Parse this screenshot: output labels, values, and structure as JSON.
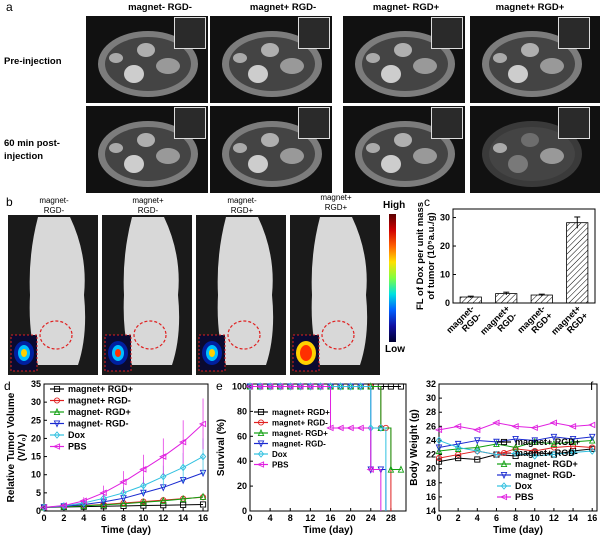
{
  "panel_a": {
    "label": "a",
    "columns": [
      "magnet- RGD-",
      "magnet+ RGD-",
      "magnet- RGD+",
      "magnet+ RGD+"
    ],
    "rows": [
      "Pre-injection",
      "60 min post-\ninjection"
    ]
  },
  "panel_b": {
    "label": "b",
    "mice": [
      "magnet-\nRGD-",
      "magnet+\nRGD-",
      "magnet-\nRGD+",
      "magnet+\nRGD+"
    ],
    "scale_high": "High",
    "scale_low": "Low",
    "colors": {
      "hot": "#ff3000",
      "warm": "#ffd000",
      "cool": "#00c0ff",
      "cold": "#0020a0"
    }
  },
  "chart_data": [
    {
      "panel": "c",
      "type": "bar",
      "categories": [
        "magnet-\nRGD-",
        "magnet+\nRGD-",
        "magnet-\nRGD+",
        "magnet+\nRGD+"
      ],
      "values": [
        2.1,
        3.3,
        2.8,
        28.2
      ],
      "errors": [
        0.3,
        0.5,
        0.3,
        2.0
      ],
      "ylabel": "FL of Dox per unit mass\nof tumor (10⁵a.u./g)",
      "yticks": [
        0,
        10,
        20,
        30
      ],
      "ylim": [
        0,
        33
      ]
    },
    {
      "panel": "d",
      "type": "line",
      "xlabel": "Time (day)",
      "ylabel": "Relative Tumor Volume\n(V/V₀)",
      "xticks": [
        0,
        2,
        4,
        6,
        8,
        10,
        12,
        14,
        16
      ],
      "yticks": [
        0,
        5,
        10,
        15,
        20,
        25,
        30,
        35
      ],
      "xlim": [
        0,
        16.5
      ],
      "ylim": [
        0,
        35
      ],
      "x": [
        0,
        2,
        4,
        6,
        8,
        10,
        12,
        14,
        16
      ],
      "series": [
        {
          "name": "magnet+ RGD+",
          "color": "#000000",
          "marker": "square",
          "values": [
            1,
            1.1,
            1.2,
            1.3,
            1.4,
            1.5,
            1.6,
            1.7,
            1.8
          ]
        },
        {
          "name": "magnet+ RGD-",
          "color": "#e02020",
          "marker": "circle",
          "values": [
            1,
            1.2,
            1.5,
            1.8,
            2.2,
            2.6,
            3.0,
            3.4,
            3.8
          ]
        },
        {
          "name": "magnet- RGD+",
          "color": "#10a010",
          "marker": "triangle",
          "values": [
            1,
            1.2,
            1.4,
            1.7,
            2.0,
            2.4,
            2.8,
            3.3,
            3.9
          ]
        },
        {
          "name": "magnet- RGD-",
          "color": "#1a2ad0",
          "marker": "triangle-down",
          "values": [
            1,
            1.3,
            1.8,
            2.5,
            3.5,
            5.0,
            6.5,
            8.5,
            10.5
          ]
        },
        {
          "name": "Dox",
          "color": "#30c0e0",
          "marker": "diamond",
          "values": [
            1,
            1.4,
            2.2,
            3.5,
            5.0,
            7.0,
            9.5,
            12.0,
            15.0
          ],
          "errors": [
            0,
            0.3,
            0.5,
            1.0,
            1.5,
            2.5,
            3.0,
            4.0,
            5.0
          ]
        },
        {
          "name": "PBS",
          "color": "#e020e0",
          "marker": "triangle-left",
          "values": [
            1,
            1.5,
            2.8,
            5.0,
            8.0,
            11.5,
            15.0,
            19.0,
            24.0
          ],
          "errors": [
            0,
            0.5,
            1.0,
            2.0,
            3.0,
            4.0,
            5.0,
            6.0,
            7.0
          ]
        }
      ]
    },
    {
      "panel": "e",
      "type": "line",
      "xlabel": "Time (day)",
      "ylabel": "Survival (%)",
      "xticks": [
        0,
        4,
        8,
        12,
        16,
        20,
        24,
        28
      ],
      "yticks": [
        0,
        20,
        40,
        60,
        80,
        100
      ],
      "xlim": [
        0,
        31
      ],
      "ylim": [
        0,
        102
      ],
      "series": [
        {
          "name": "magnet+ RGD+",
          "color": "#000000",
          "marker": "square",
          "x": [
            0,
            2,
            4,
            6,
            8,
            10,
            12,
            14,
            16,
            18,
            20,
            22,
            24,
            26,
            28,
            30
          ],
          "values": [
            100,
            100,
            100,
            100,
            100,
            100,
            100,
            100,
            100,
            100,
            100,
            100,
            100,
            100,
            100,
            100
          ]
        },
        {
          "name": "magnet+ RGD-",
          "color": "#e02020",
          "marker": "circle",
          "x": [
            0,
            2,
            4,
            6,
            8,
            10,
            12,
            14,
            16,
            18,
            20,
            22,
            24,
            26,
            27,
            28
          ],
          "values": [
            100,
            100,
            100,
            100,
            100,
            100,
            100,
            100,
            100,
            100,
            100,
            100,
            100,
            66.7,
            66.7,
            0
          ]
        },
        {
          "name": "magnet- RGD+",
          "color": "#10a010",
          "marker": "triangle",
          "x": [
            0,
            2,
            4,
            6,
            8,
            10,
            12,
            14,
            16,
            18,
            20,
            22,
            24,
            26,
            28,
            30
          ],
          "values": [
            100,
            100,
            100,
            100,
            100,
            100,
            100,
            100,
            100,
            100,
            100,
            100,
            100,
            66.7,
            33.3,
            33.3
          ]
        },
        {
          "name": "magnet- RGD-",
          "color": "#1a2ad0",
          "marker": "triangle-down",
          "x": [
            0,
            2,
            4,
            6,
            8,
            10,
            12,
            14,
            16,
            18,
            20,
            22,
            24,
            26,
            27
          ],
          "values": [
            100,
            100,
            100,
            100,
            100,
            100,
            100,
            100,
            100,
            100,
            100,
            100,
            33.3,
            33.3,
            0
          ]
        },
        {
          "name": "Dox",
          "color": "#30c0e0",
          "marker": "diamond",
          "x": [
            0,
            2,
            4,
            6,
            8,
            10,
            12,
            14,
            16,
            18,
            20,
            22,
            24,
            26,
            27
          ],
          "values": [
            100,
            100,
            100,
            100,
            100,
            100,
            100,
            100,
            100,
            100,
            100,
            100,
            66.7,
            66.7,
            0
          ]
        },
        {
          "name": "PBS",
          "color": "#e020e0",
          "marker": "triangle-left",
          "x": [
            0,
            2,
            4,
            6,
            8,
            10,
            12,
            14,
            16,
            18,
            20,
            22,
            24,
            26
          ],
          "values": [
            100,
            100,
            100,
            100,
            100,
            100,
            100,
            100,
            66.7,
            66.7,
            66.7,
            66.7,
            33.3,
            0
          ]
        }
      ]
    },
    {
      "panel": "f",
      "type": "line",
      "xlabel": "Time (day)",
      "ylabel": "Body Weight (g)",
      "xticks": [
        0,
        2,
        4,
        6,
        8,
        10,
        12,
        14,
        16
      ],
      "yticks": [
        14,
        16,
        18,
        20,
        22,
        24,
        26,
        28,
        30,
        32
      ],
      "xlim": [
        0,
        16.5
      ],
      "ylim": [
        14,
        32
      ],
      "x": [
        0,
        2,
        4,
        6,
        8,
        10,
        12,
        14,
        16
      ],
      "series": [
        {
          "name": "magnet+ RGD+",
          "color": "#000000",
          "marker": "square",
          "values": [
            21.0,
            21.5,
            21.3,
            22.0,
            21.8,
            22.3,
            22.0,
            22.5,
            22.8
          ]
        },
        {
          "name": "magnet+ RGD-",
          "color": "#e02020",
          "marker": "circle",
          "values": [
            21.5,
            22.0,
            22.5,
            22.0,
            22.8,
            22.5,
            23.0,
            23.2,
            23.0
          ]
        },
        {
          "name": "magnet- RGD+",
          "color": "#10a010",
          "marker": "triangle",
          "values": [
            22.5,
            22.8,
            23.0,
            23.5,
            23.0,
            23.8,
            23.5,
            23.8,
            24.0
          ]
        },
        {
          "name": "magnet- RGD-",
          "color": "#1a2ad0",
          "marker": "triangle-down",
          "values": [
            23.0,
            23.5,
            24.0,
            23.8,
            24.2,
            24.0,
            24.5,
            24.2,
            24.5
          ]
        },
        {
          "name": "Dox",
          "color": "#30c0e0",
          "marker": "diamond",
          "values": [
            24.0,
            23.0,
            22.5,
            22.0,
            22.2,
            21.8,
            22.0,
            22.3,
            22.5
          ]
        },
        {
          "name": "PBS",
          "color": "#e020e0",
          "marker": "triangle-left",
          "values": [
            25.5,
            26.0,
            25.5,
            26.5,
            26.0,
            25.8,
            26.5,
            26.0,
            26.2
          ]
        }
      ]
    }
  ]
}
